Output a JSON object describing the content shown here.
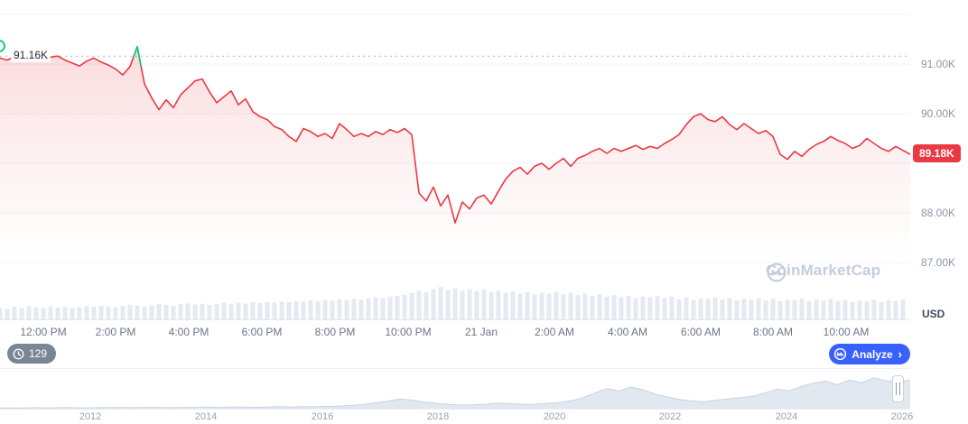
{
  "ui": {
    "counter_badge": "129",
    "analyze": {
      "label": "Analyze",
      "chevron": "›"
    },
    "watermark_text": "CoinMarketCap"
  },
  "colors": {
    "line_red": "#ea3943",
    "spike_green": "#16c784",
    "analyze_blue": "#3861fb",
    "volume_gray": "#e4eaf1",
    "navigator_gray": "#e2e8f0"
  },
  "chart_data": {
    "type": "line",
    "currency": "USD",
    "open_price_label": "91.16K",
    "open_value": 91.16,
    "last_price_label": "89.18K",
    "last_value": 89.18,
    "line_color": "#ea3943",
    "spike_color": "#16c784",
    "grid_values": [
      92,
      91,
      90,
      89,
      88,
      87
    ],
    "y_ticks": [
      {
        "label": "91.00K",
        "value": 91
      },
      {
        "label": "90.00K",
        "value": 90
      },
      {
        "label": "88.00K",
        "value": 88
      },
      {
        "label": "87.00K",
        "value": 87
      }
    ],
    "ylim": [
      85.84,
      92.29
    ],
    "x_ticks": [
      "12:00 PM",
      "2:00 PM",
      "4:00 PM",
      "6:00 PM",
      "8:00 PM",
      "10:00 PM",
      "21 Jan",
      "2:00 AM",
      "4:00 AM",
      "6:00 AM",
      "8:00 AM",
      "10:00 AM"
    ],
    "price_values": [
      91.12,
      91.08,
      91.15,
      91.1,
      91.16,
      91.12,
      91.1,
      91.14,
      91.16,
      91.08,
      91.02,
      90.96,
      91.06,
      91.12,
      91.04,
      90.98,
      90.9,
      90.78,
      90.95,
      91.35,
      90.6,
      90.32,
      90.08,
      90.28,
      90.12,
      90.38,
      90.52,
      90.66,
      90.7,
      90.44,
      90.22,
      90.34,
      90.46,
      90.18,
      90.3,
      90.04,
      89.94,
      89.88,
      89.74,
      89.68,
      89.54,
      89.44,
      89.7,
      89.64,
      89.54,
      89.6,
      89.5,
      89.8,
      89.68,
      89.54,
      89.6,
      89.54,
      89.64,
      89.58,
      89.68,
      89.62,
      89.7,
      89.58,
      88.4,
      88.24,
      88.52,
      88.14,
      88.36,
      87.8,
      88.22,
      88.08,
      88.3,
      88.36,
      88.18,
      88.44,
      88.68,
      88.84,
      88.92,
      88.78,
      88.94,
      89.0,
      88.88,
      89.0,
      89.1,
      88.94,
      89.1,
      89.16,
      89.24,
      89.3,
      89.2,
      89.3,
      89.24,
      89.3,
      89.36,
      89.28,
      89.34,
      89.3,
      89.4,
      89.48,
      89.58,
      89.78,
      89.94,
      90.0,
      89.88,
      89.84,
      89.94,
      89.78,
      89.68,
      89.8,
      89.7,
      89.6,
      89.66,
      89.54,
      89.18,
      89.08,
      89.24,
      89.14,
      89.28,
      89.38,
      89.44,
      89.54,
      89.46,
      89.4,
      89.3,
      89.36,
      89.5,
      89.4,
      89.3,
      89.24,
      89.34,
      89.26,
      89.18
    ],
    "volume_values": [
      0.3,
      0.28,
      0.33,
      0.3,
      0.35,
      0.32,
      0.3,
      0.34,
      0.31,
      0.33,
      0.3,
      0.32,
      0.35,
      0.33,
      0.36,
      0.34,
      0.32,
      0.35,
      0.38,
      0.36,
      0.34,
      0.37,
      0.4,
      0.38,
      0.36,
      0.4,
      0.42,
      0.39,
      0.41,
      0.38,
      0.4,
      0.43,
      0.41,
      0.44,
      0.42,
      0.45,
      0.43,
      0.46,
      0.44,
      0.47,
      0.45,
      0.48,
      0.46,
      0.5,
      0.48,
      0.52,
      0.5,
      0.53,
      0.51,
      0.54,
      0.52,
      0.55,
      0.58,
      0.56,
      0.6,
      0.62,
      0.65,
      0.7,
      0.75,
      0.72,
      0.8,
      0.85,
      0.78,
      0.82,
      0.76,
      0.8,
      0.74,
      0.78,
      0.72,
      0.76,
      0.7,
      0.74,
      0.68,
      0.72,
      0.66,
      0.7,
      0.68,
      0.72,
      0.66,
      0.7,
      0.64,
      0.68,
      0.62,
      0.66,
      0.6,
      0.64,
      0.58,
      0.62,
      0.56,
      0.6,
      0.58,
      0.62,
      0.56,
      0.6,
      0.54,
      0.58,
      0.52,
      0.56,
      0.54,
      0.58,
      0.52,
      0.56,
      0.5,
      0.54,
      0.52,
      0.56,
      0.5,
      0.54,
      0.48,
      0.52,
      0.5,
      0.54,
      0.48,
      0.52,
      0.5,
      0.54,
      0.48,
      0.52,
      0.46,
      0.5,
      0.48,
      0.52,
      0.46,
      0.5,
      0.48,
      0.52
    ],
    "navigator": {
      "years": [
        "2012",
        "2014",
        "2016",
        "2018",
        "2020",
        "2022",
        "2024",
        "2026"
      ],
      "values": [
        0.02,
        0.02,
        0.02,
        0.03,
        0.02,
        0.03,
        0.03,
        0.02,
        0.03,
        0.03,
        0.04,
        0.03,
        0.04,
        0.04,
        0.03,
        0.04,
        0.04,
        0.05,
        0.04,
        0.05,
        0.05,
        0.04,
        0.05,
        0.06,
        0.05,
        0.06,
        0.06,
        0.07,
        0.08,
        0.1,
        0.13,
        0.18,
        0.24,
        0.3,
        0.26,
        0.2,
        0.16,
        0.13,
        0.11,
        0.12,
        0.14,
        0.17,
        0.15,
        0.13,
        0.14,
        0.16,
        0.19,
        0.24,
        0.33,
        0.48,
        0.62,
        0.55,
        0.66,
        0.58,
        0.45,
        0.36,
        0.28,
        0.24,
        0.21,
        0.26,
        0.3,
        0.34,
        0.38,
        0.48,
        0.6,
        0.55,
        0.68,
        0.78,
        0.85,
        0.74,
        0.88,
        0.8,
        0.95,
        0.86,
        0.82,
        0.88
      ]
    }
  }
}
